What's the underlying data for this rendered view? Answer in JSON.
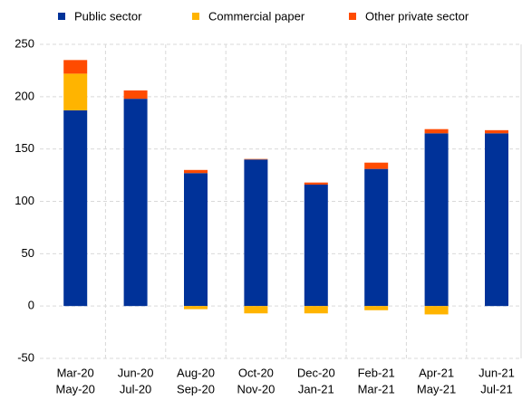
{
  "chart_data": {
    "type": "stacked_bar",
    "categories": [
      [
        "Mar-20",
        "May-20"
      ],
      [
        "Jun-20",
        "Jul-20"
      ],
      [
        "Aug-20",
        "Sep-20"
      ],
      [
        "Oct-20",
        "Nov-20"
      ],
      [
        "Dec-20",
        "Jan-21"
      ],
      [
        "Feb-21",
        "Mar-21"
      ],
      [
        "Apr-21",
        "May-21"
      ],
      [
        "Jun-21",
        "Jul-21"
      ]
    ],
    "series": [
      {
        "name": "Public sector",
        "color": "#003299",
        "values": [
          187,
          198,
          127,
          140,
          116,
          131,
          165,
          165
        ]
      },
      {
        "name": "Commercial paper",
        "color": "#ffb400",
        "values": [
          35,
          0,
          -3,
          -7,
          -7,
          -4,
          -8,
          0
        ]
      },
      {
        "name": "Other private sector",
        "color": "#ff4b00",
        "values": [
          13,
          8,
          3,
          0.5,
          2,
          6,
          4,
          3
        ]
      }
    ],
    "ylim": [
      -50,
      250
    ],
    "yticks": [
      -50,
      0,
      50,
      100,
      150,
      200,
      250
    ],
    "grid": true
  }
}
